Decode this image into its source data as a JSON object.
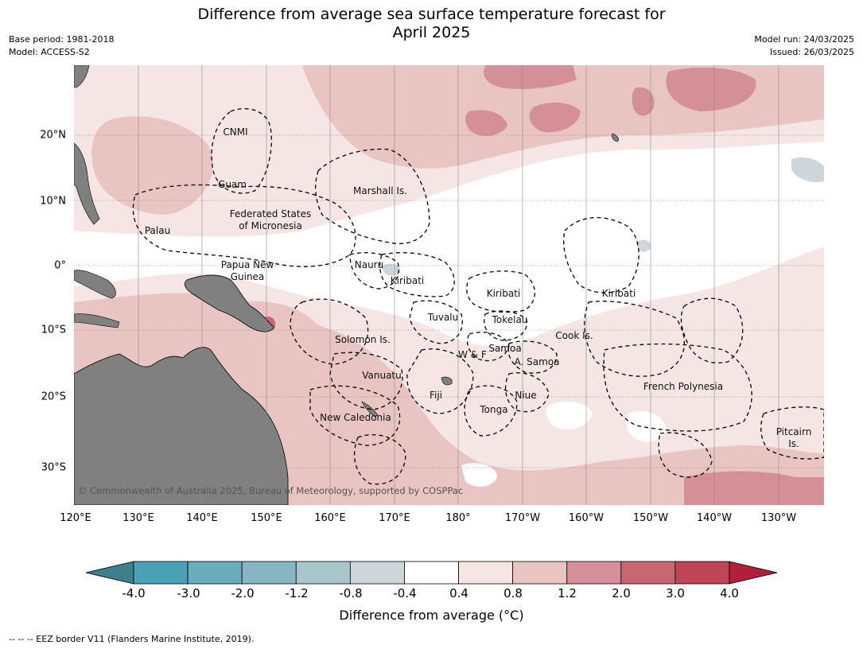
{
  "title_line1": "Difference from average sea surface temperature forecast for",
  "title_line2": "April 2025",
  "base_period": "Base period: 1981-2018",
  "model": "Model: ACCESS-S2",
  "model_run": "Model run: 24/03/2025",
  "issued": "Issued: 26/03/2025",
  "copyright": "© Commonwealth of Australia 2025, Bureau of Meteorology, supported by COSPPac",
  "eez_note": "--  --  -- EEZ border V11 (Flanders Marine Institute, 2019).",
  "colorbar": {
    "title": "Difference from average (°C)",
    "ticks": [
      "-4.0",
      "-3.0",
      "-2.0",
      "-1.2",
      "-0.8",
      "-0.4",
      "0.4",
      "0.8",
      "1.2",
      "2.0",
      "3.0",
      "4.0"
    ],
    "colors": [
      "#3e7f8c",
      "#4aa0b4",
      "#6aaebe",
      "#88b5c2",
      "#a9c6cb",
      "#cdd6d8",
      "#ffffff",
      "#f5e5e4",
      "#e8c5c2",
      "#d48f98",
      "#c96672",
      "#c04655",
      "#b21f3b"
    ]
  },
  "axes": {
    "longitudes": [
      "120°E",
      "130°E",
      "140°E",
      "150°E",
      "160°E",
      "170°E",
      "180°",
      "170°W",
      "160°W",
      "150°W",
      "140°W",
      "130°W"
    ],
    "latitudes": [
      "20°N",
      "10°N",
      "0°",
      "10°S",
      "20°S",
      "30°S"
    ]
  },
  "regions": [
    {
      "name": "CNMI"
    },
    {
      "name": "Guam"
    },
    {
      "name": "Marshall Is."
    },
    {
      "name": "Federated States"
    },
    {
      "name": "of Micronesia"
    },
    {
      "name": "Palau"
    },
    {
      "name": "Papua New"
    },
    {
      "name": "Guinea"
    },
    {
      "name": "Nauru"
    },
    {
      "name": "Kiribati"
    },
    {
      "name": "Kiribati"
    },
    {
      "name": "Kiribati"
    },
    {
      "name": "Tuvalu"
    },
    {
      "name": "Tokelau"
    },
    {
      "name": "Solomon Is."
    },
    {
      "name": "Cook Is."
    },
    {
      "name": "Samoa"
    },
    {
      "name": "W & F"
    },
    {
      "name": "A. Samoa"
    },
    {
      "name": "Vanuatu"
    },
    {
      "name": "Fiji"
    },
    {
      "name": "Niue"
    },
    {
      "name": "French Polynesia"
    },
    {
      "name": "Tonga"
    },
    {
      "name": "New Caledonia"
    },
    {
      "name": "Pitcairn"
    },
    {
      "name": "Is."
    }
  ]
}
